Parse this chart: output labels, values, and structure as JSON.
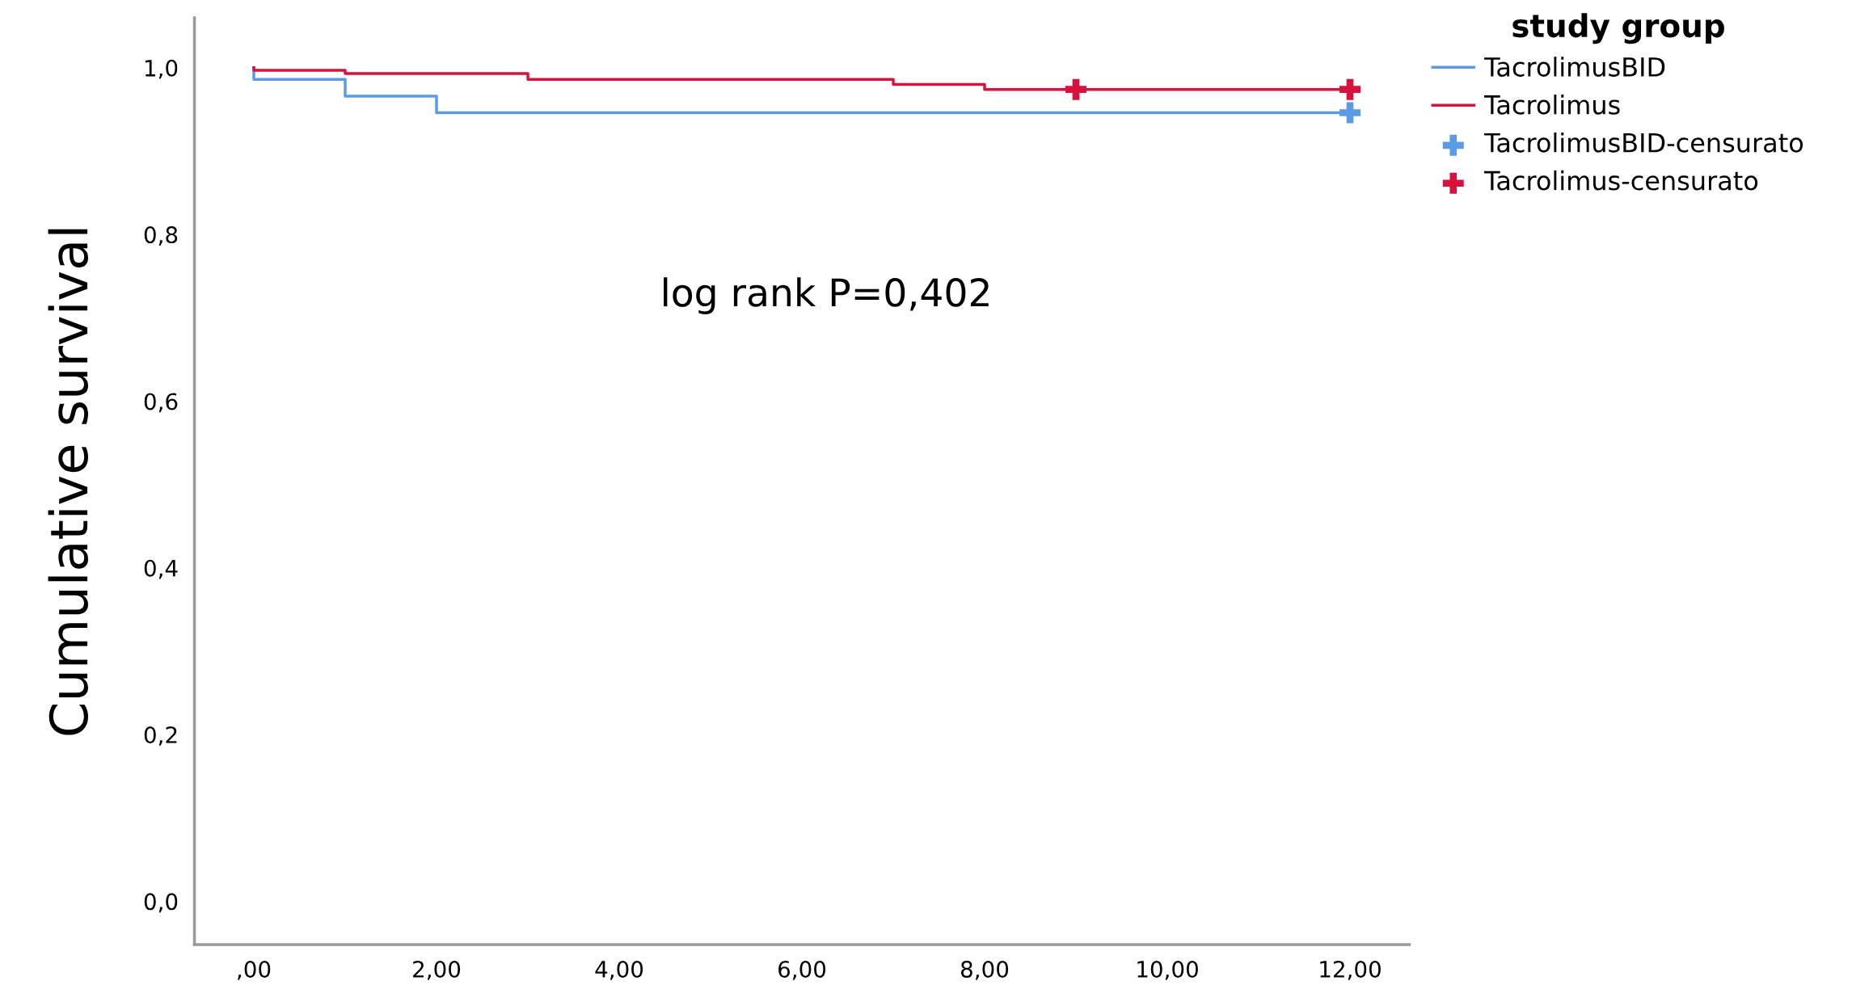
{
  "chart_data": {
    "type": "step",
    "ylabel": "Cumulative survival",
    "legend_title": "study group",
    "legend": "top right",
    "grid": false,
    "annotations": [
      "log rank P=0,402"
    ],
    "xlim": [
      -0.65,
      12.65
    ],
    "ylim": [
      -0.052,
      1.06
    ],
    "xticks": [
      {
        "value": 0,
        "label": ",00"
      },
      {
        "value": 2,
        "label": "2,00"
      },
      {
        "value": 4,
        "label": "4,00"
      },
      {
        "value": 6,
        "label": "6,00"
      },
      {
        "value": 8,
        "label": "8,00"
      },
      {
        "value": 10,
        "label": "10,00"
      },
      {
        "value": 12,
        "label": "12,00"
      }
    ],
    "yticks": [
      {
        "value": 0,
        "label": "0,0"
      },
      {
        "value": 0.2,
        "label": "0,2"
      },
      {
        "value": 0.4,
        "label": "0,4"
      },
      {
        "value": 0.6,
        "label": "0,6"
      },
      {
        "value": 0.8,
        "label": "0,8"
      },
      {
        "value": 1.0,
        "label": "1,0"
      }
    ],
    "series": [
      {
        "name": "TacrolimusBID",
        "color": "#5b9be6",
        "x": [
          0,
          0,
          1,
          2,
          12
        ],
        "values": [
          1.0,
          0.986,
          0.966,
          0.946,
          0.946
        ]
      },
      {
        "name": "Tacrolimus",
        "color": "#d8123e",
        "x": [
          0,
          0,
          1,
          3,
          7,
          8,
          12
        ],
        "values": [
          1.0,
          0.997,
          0.993,
          0.986,
          0.98,
          0.974,
          0.974
        ]
      },
      {
        "name": "TacrolimusBID-censurato",
        "type": "scatter",
        "marker": "cross",
        "color": "#5b9be6",
        "x": [
          12
        ],
        "values": [
          0.946
        ]
      },
      {
        "name": "Tacrolimus-censurato",
        "type": "scatter",
        "marker": "cross",
        "color": "#d8123e",
        "x": [
          9,
          12
        ],
        "values": [
          0.974,
          0.974
        ]
      }
    ]
  }
}
